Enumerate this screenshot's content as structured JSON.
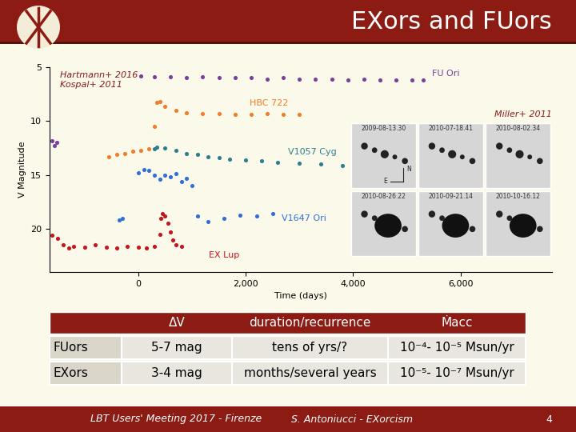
{
  "header": {
    "title": "EXors and FUors"
  },
  "chart_data": {
    "type": "scatter",
    "marker": "o",
    "x_label": "Time (days)",
    "y_label": "V Magnitude",
    "annotations": [
      "Hartmann+ 2016",
      "Kospal+ 2011"
    ],
    "xlim": [
      -1650,
      7700
    ],
    "xticks": [
      0,
      {
        "value": 2000,
        "label": "2,000"
      },
      {
        "value": 4000,
        "label": "4,000"
      },
      {
        "value": 6000,
        "label": "6,000"
      }
    ],
    "ylim": [
      24,
      5
    ],
    "yticks": [
      5,
      10,
      15,
      20
    ],
    "series": [
      {
        "name": "FU Ori",
        "color": "#7b3f9e",
        "x": [
          -1600,
          -1560,
          -1520,
          50,
          300,
          600,
          900,
          1200,
          1500,
          1800,
          2100,
          2400,
          2700,
          3000,
          3300,
          3600,
          3900,
          4200,
          4500,
          4800,
          5100,
          5300
        ],
        "values": [
          11.8,
          12.3,
          12.0,
          5.8,
          5.9,
          5.9,
          6.0,
          5.9,
          6.0,
          6.0,
          6.0,
          6.1,
          6.0,
          6.1,
          6.1,
          6.1,
          6.2,
          6.1,
          6.2,
          6.2,
          6.2,
          6.2
        ]
      },
      {
        "name": "HBC 722",
        "color": "#f07d2a",
        "x": [
          -550,
          -400,
          -250,
          -100,
          50,
          200,
          300,
          350,
          400,
          500,
          700,
          900,
          1200,
          1500,
          1800,
          2100,
          2400,
          2700,
          3000
        ],
        "values": [
          13.3,
          13.1,
          13.0,
          12.8,
          12.7,
          12.6,
          10.5,
          8.3,
          8.2,
          8.6,
          9.0,
          9.2,
          9.3,
          9.3,
          9.4,
          9.4,
          9.3,
          9.4,
          9.4
        ]
      },
      {
        "name": "V1057 Cyg",
        "color": "#2a7f8f",
        "x": [
          300,
          350,
          500,
          700,
          900,
          1100,
          1300,
          1500,
          1700,
          2000,
          2300,
          2600,
          3000,
          3400,
          3800
        ],
        "values": [
          12.6,
          12.4,
          12.5,
          12.7,
          13.0,
          13.1,
          13.3,
          13.4,
          13.5,
          13.6,
          13.7,
          13.8,
          13.9,
          14.0,
          14.1
        ]
      },
      {
        "name": "V1647 Ori",
        "color": "#2f6fd6",
        "x": [
          -350,
          -300,
          0,
          100,
          200,
          300,
          400,
          500,
          600,
          700,
          800,
          900,
          1000,
          1100,
          1300,
          1600,
          1900,
          2200,
          2500
        ],
        "values": [
          19.2,
          19.0,
          14.8,
          14.5,
          14.6,
          15.0,
          15.4,
          15.0,
          15.2,
          14.9,
          15.6,
          15.3,
          16.0,
          18.8,
          19.3,
          19.0,
          18.7,
          18.8,
          18.6
        ]
      },
      {
        "name": "EX Lup",
        "color": "#c4161c",
        "x": [
          -1600,
          -1500,
          -1400,
          -1300,
          -1200,
          -1000,
          -800,
          -600,
          -400,
          -200,
          0,
          150,
          300,
          400,
          420,
          450,
          500,
          550,
          600,
          650,
          700,
          800
        ],
        "values": [
          20.6,
          20.9,
          21.5,
          21.8,
          21.6,
          21.7,
          21.5,
          21.7,
          21.8,
          21.6,
          21.7,
          21.8,
          21.6,
          20.5,
          19.0,
          18.6,
          18.8,
          19.5,
          20.3,
          21.0,
          21.5,
          21.6
        ]
      }
    ]
  },
  "images": {
    "credit": "Miller+ 2011",
    "panels": [
      "2009-08-13.30",
      "2010-07-18.41",
      "2010-08-02.34",
      "2010-08-26.22",
      "2010-09-21.14",
      "2010-10-16.12"
    ],
    "compass": [
      "N",
      "E"
    ]
  },
  "table": {
    "header": [
      "ΔV",
      "duration/recurrence",
      "Ṁacc"
    ],
    "rows": [
      [
        "FUors",
        "5-7 mag",
        "tens of yrs/?",
        "10⁻⁴- 10⁻⁵ Msun/yr"
      ],
      [
        "EXors",
        "3-4 mag",
        "months/several years",
        "10⁻⁵- 10⁻⁷ Msun/yr"
      ]
    ]
  },
  "footer": {
    "left": "LBT Users' Meeting 2017 - Firenze",
    "center": "S. Antoniucci - EXorcism",
    "page": 4
  }
}
